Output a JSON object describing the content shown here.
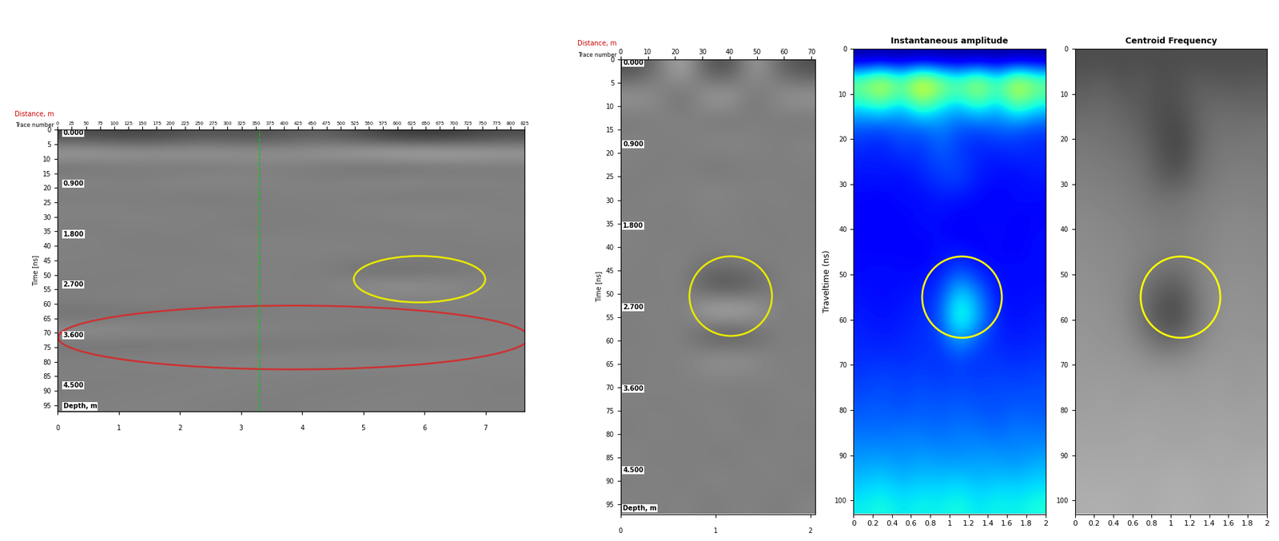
{
  "chart_data": [
    {
      "type": "radargram",
      "x_label": {
        "text": "Distance, m",
        "color": "#cc0000"
      },
      "x2_label": "Trace number",
      "y_label": "Time [ns]",
      "depth_title": "Depth, m",
      "xlim": [
        0,
        7.64
      ],
      "xticks": [
        0,
        1,
        2,
        3,
        4,
        5,
        6,
        7
      ],
      "x2lim": [
        0,
        825
      ],
      "x2ticks": [
        0,
        25,
        50,
        75,
        100,
        125,
        150,
        175,
        200,
        225,
        250,
        275,
        300,
        325,
        350,
        375,
        400,
        425,
        450,
        475,
        500,
        525,
        550,
        575,
        600,
        625,
        650,
        675,
        700,
        725,
        750,
        775,
        800,
        825
      ],
      "ylim": [
        0,
        97
      ],
      "yticks": [
        0,
        5,
        10,
        15,
        20,
        25,
        30,
        35,
        40,
        45,
        50,
        55,
        60,
        65,
        70,
        75,
        80,
        85,
        90,
        95
      ],
      "depth_labels": [
        {
          "value": 0,
          "label": "0.000"
        },
        {
          "value": 17.4,
          "label": "0.900"
        },
        {
          "value": 34.8,
          "label": "1.800"
        },
        {
          "value": 52.2,
          "label": "2.700"
        },
        {
          "value": 69.6,
          "label": "3.600"
        },
        {
          "value": 87,
          "label": "4.500"
        }
      ],
      "marker_line": {
        "x": 3.3,
        "color": "#00cc00"
      },
      "highlights": [
        {
          "x": 5.92,
          "y": 51.5,
          "width": 2.15,
          "height": 16,
          "color": "#e8e800"
        },
        {
          "x": 3.86,
          "y": 71.6,
          "width": 7.7,
          "height": 22,
          "color": "#cc3333"
        }
      ],
      "cells": [
        [
          0.3,
          0.25,
          0.35,
          0.3,
          0.4,
          0.25,
          0.2,
          0.3
        ],
        [
          0.65,
          0.6,
          0.62,
          0.58,
          0.6,
          0.68,
          0.7,
          0.64
        ],
        [
          0.44,
          0.48,
          0.46,
          0.5,
          0.47,
          0.42,
          0.45,
          0.47
        ],
        [
          0.53,
          0.5,
          0.55,
          0.52,
          0.5,
          0.54,
          0.53,
          0.51
        ],
        [
          0.48,
          0.5,
          0.47,
          0.49,
          0.51,
          0.48,
          0.47,
          0.5
        ],
        [
          0.52,
          0.5,
          0.51,
          0.5,
          0.49,
          0.52,
          0.53,
          0.5
        ],
        [
          0.49,
          0.51,
          0.5,
          0.48,
          0.5,
          0.49,
          0.5,
          0.51
        ],
        [
          0.51,
          0.48,
          0.5,
          0.52,
          0.5,
          0.51,
          0.49,
          0.5
        ],
        [
          0.5,
          0.5,
          0.49,
          0.5,
          0.51,
          0.5,
          0.5,
          0.49
        ],
        [
          0.5,
          0.49,
          0.51,
          0.5,
          0.5,
          0.42,
          0.44,
          0.5
        ],
        [
          0.49,
          0.5,
          0.5,
          0.51,
          0.49,
          0.58,
          0.56,
          0.5
        ],
        [
          0.5,
          0.51,
          0.49,
          0.5,
          0.5,
          0.49,
          0.51,
          0.5
        ],
        [
          0.44,
          0.46,
          0.47,
          0.49,
          0.5,
          0.5,
          0.49,
          0.5
        ],
        [
          0.57,
          0.55,
          0.54,
          0.52,
          0.5,
          0.49,
          0.51,
          0.5
        ],
        [
          0.46,
          0.45,
          0.47,
          0.46,
          0.48,
          0.47,
          0.49,
          0.5
        ],
        [
          0.5,
          0.52,
          0.51,
          0.53,
          0.52,
          0.54,
          0.52,
          0.51
        ],
        [
          0.5,
          0.49,
          0.5,
          0.51,
          0.5,
          0.49,
          0.5,
          0.5
        ],
        [
          0.49,
          0.5,
          0.51,
          0.5,
          0.49,
          0.5,
          0.51,
          0.49
        ],
        [
          0.5,
          0.51,
          0.5,
          0.49,
          0.5,
          0.51,
          0.5,
          0.5
        ]
      ]
    },
    {
      "type": "radargram",
      "x_label": {
        "text": "Distance, m",
        "color": "#cc0000"
      },
      "x2_label": "Trace number",
      "y_label": "Time [ns]",
      "depth_title": "Depth, m",
      "xlim": [
        0,
        2.05
      ],
      "xticks": [
        0,
        1,
        2
      ],
      "x2lim": [
        0,
        71.4
      ],
      "x2ticks": [
        0,
        10,
        20,
        30,
        40,
        50,
        60,
        70
      ],
      "ylim": [
        0,
        97
      ],
      "yticks": [
        0,
        5,
        10,
        15,
        20,
        25,
        30,
        35,
        40,
        45,
        50,
        55,
        60,
        65,
        70,
        75,
        80,
        85,
        90,
        95
      ],
      "depth_labels": [
        {
          "value": 0,
          "label": "0.000"
        },
        {
          "value": 17.4,
          "label": "0.900"
        },
        {
          "value": 34.8,
          "label": "1.800"
        },
        {
          "value": 52.2,
          "label": "2.700"
        },
        {
          "value": 69.6,
          "label": "3.600"
        },
        {
          "value": 87,
          "label": "4.500"
        }
      ],
      "highlights": [
        {
          "x": 1.16,
          "y": 50.5,
          "width": 0.87,
          "height": 17,
          "color": "#e8e800"
        }
      ],
      "cells": [
        [
          0.3,
          0.45,
          0.7,
          0.35,
          0.3,
          0.65,
          0.4,
          0.3
        ],
        [
          0.62,
          0.55,
          0.4,
          0.62,
          0.65,
          0.42,
          0.58,
          0.62
        ],
        [
          0.46,
          0.5,
          0.52,
          0.47,
          0.45,
          0.5,
          0.48,
          0.46
        ],
        [
          0.52,
          0.5,
          0.49,
          0.53,
          0.54,
          0.51,
          0.5,
          0.52
        ],
        [
          0.5,
          0.48,
          0.51,
          0.46,
          0.47,
          0.5,
          0.49,
          0.5
        ],
        [
          0.49,
          0.51,
          0.5,
          0.53,
          0.52,
          0.5,
          0.51,
          0.49
        ],
        [
          0.5,
          0.5,
          0.49,
          0.51,
          0.5,
          0.49,
          0.5,
          0.5
        ],
        [
          0.51,
          0.49,
          0.5,
          0.5,
          0.51,
          0.5,
          0.49,
          0.5
        ],
        [
          0.5,
          0.5,
          0.51,
          0.47,
          0.48,
          0.5,
          0.5,
          0.5
        ],
        [
          0.5,
          0.49,
          0.52,
          0.32,
          0.28,
          0.36,
          0.5,
          0.51
        ],
        [
          0.5,
          0.51,
          0.48,
          0.7,
          0.74,
          0.66,
          0.49,
          0.5
        ],
        [
          0.49,
          0.5,
          0.51,
          0.34,
          0.3,
          0.38,
          0.5,
          0.5
        ],
        [
          0.5,
          0.5,
          0.5,
          0.58,
          0.6,
          0.56,
          0.5,
          0.5
        ],
        [
          0.49,
          0.51,
          0.5,
          0.5,
          0.49,
          0.5,
          0.51,
          0.5
        ],
        [
          0.51,
          0.49,
          0.5,
          0.51,
          0.5,
          0.49,
          0.5,
          0.51
        ],
        [
          0.48,
          0.52,
          0.49,
          0.5,
          0.52,
          0.48,
          0.51,
          0.49
        ],
        [
          0.52,
          0.48,
          0.51,
          0.49,
          0.48,
          0.52,
          0.49,
          0.51
        ],
        [
          0.49,
          0.52,
          0.48,
          0.52,
          0.51,
          0.49,
          0.52,
          0.48
        ],
        [
          0.51,
          0.49,
          0.52,
          0.48,
          0.5,
          0.51,
          0.48,
          0.52
        ]
      ]
    },
    {
      "type": "heatmap",
      "title": "Instantaneous amplitude",
      "y_label": "Traveltime (ns)",
      "xlim": [
        0,
        2
      ],
      "xticks": [
        0,
        0.2,
        0.4,
        0.6,
        0.8,
        1,
        1.2,
        1.4,
        1.6,
        1.8,
        2
      ],
      "ylim": [
        0,
        103
      ],
      "yticks": [
        0,
        10,
        20,
        30,
        40,
        50,
        60,
        70,
        80,
        90,
        100
      ],
      "highlights": [
        {
          "x": 1.13,
          "y": 55,
          "width": 0.83,
          "height": 18,
          "color": "#ffff00"
        }
      ],
      "cells": [
        [
          0.02,
          0.02,
          0.02,
          0.02,
          0.02,
          0.02,
          0.02,
          0.02,
          0.02,
          0.02
        ],
        [
          0.55,
          0.7,
          0.5,
          0.75,
          0.6,
          0.5,
          0.65,
          0.45,
          0.7,
          0.55
        ],
        [
          0.35,
          0.4,
          0.3,
          0.45,
          0.35,
          0.3,
          0.4,
          0.3,
          0.45,
          0.35
        ],
        [
          0.2,
          0.18,
          0.22,
          0.2,
          0.25,
          0.2,
          0.18,
          0.22,
          0.2,
          0.18
        ],
        [
          0.16,
          0.15,
          0.18,
          0.17,
          0.22,
          0.18,
          0.16,
          0.15,
          0.17,
          0.16
        ],
        [
          0.14,
          0.15,
          0.13,
          0.16,
          0.18,
          0.2,
          0.15,
          0.14,
          0.13,
          0.15
        ],
        [
          0.13,
          0.12,
          0.14,
          0.13,
          0.15,
          0.14,
          0.13,
          0.12,
          0.14,
          0.13
        ],
        [
          0.12,
          0.13,
          0.12,
          0.14,
          0.13,
          0.12,
          0.13,
          0.14,
          0.12,
          0.13
        ],
        [
          0.13,
          0.12,
          0.13,
          0.12,
          0.14,
          0.13,
          0.12,
          0.13,
          0.12,
          0.14
        ],
        [
          0.13,
          0.14,
          0.13,
          0.13,
          0.14,
          0.2,
          0.15,
          0.13,
          0.14,
          0.13
        ],
        [
          0.14,
          0.13,
          0.14,
          0.15,
          0.18,
          0.35,
          0.25,
          0.14,
          0.13,
          0.14
        ],
        [
          0.15,
          0.14,
          0.15,
          0.16,
          0.2,
          0.45,
          0.3,
          0.15,
          0.14,
          0.15
        ],
        [
          0.16,
          0.15,
          0.16,
          0.17,
          0.18,
          0.3,
          0.2,
          0.16,
          0.15,
          0.16
        ],
        [
          0.17,
          0.18,
          0.17,
          0.18,
          0.17,
          0.18,
          0.17,
          0.18,
          0.17,
          0.18
        ],
        [
          0.19,
          0.2,
          0.19,
          0.2,
          0.19,
          0.2,
          0.19,
          0.2,
          0.19,
          0.2
        ],
        [
          0.21,
          0.22,
          0.2,
          0.22,
          0.21,
          0.22,
          0.21,
          0.2,
          0.22,
          0.21
        ],
        [
          0.24,
          0.23,
          0.25,
          0.24,
          0.23,
          0.25,
          0.24,
          0.23,
          0.25,
          0.24
        ],
        [
          0.27,
          0.28,
          0.26,
          0.28,
          0.27,
          0.26,
          0.28,
          0.27,
          0.26,
          0.28
        ],
        [
          0.31,
          0.33,
          0.3,
          0.32,
          0.31,
          0.33,
          0.3,
          0.32,
          0.31,
          0.33
        ],
        [
          0.36,
          0.38,
          0.35,
          0.37,
          0.36,
          0.38,
          0.35,
          0.37,
          0.36,
          0.38
        ]
      ]
    },
    {
      "type": "heatmap",
      "title": "Centroid Frequency",
      "xlim": [
        0,
        2
      ],
      "xticks": [
        0,
        0.2,
        0.4,
        0.6,
        0.8,
        1,
        1.2,
        1.4,
        1.6,
        1.8,
        2
      ],
      "ylim": [
        0,
        103
      ],
      "yticks": [
        0,
        10,
        20,
        30,
        40,
        50,
        60,
        70,
        80,
        90,
        100
      ],
      "highlights": [
        {
          "x": 1.1,
          "y": 55,
          "width": 0.83,
          "height": 18,
          "color": "#ffff00"
        }
      ],
      "cells": [
        [
          0.3,
          0.3,
          0.3,
          0.3,
          0.3,
          0.3,
          0.3,
          0.3,
          0.3,
          0.3
        ],
        [
          0.35,
          0.38,
          0.32,
          0.36,
          0.3,
          0.33,
          0.37,
          0.35,
          0.34,
          0.36
        ],
        [
          0.4,
          0.42,
          0.38,
          0.35,
          0.3,
          0.32,
          0.4,
          0.42,
          0.41,
          0.4
        ],
        [
          0.45,
          0.44,
          0.42,
          0.38,
          0.3,
          0.28,
          0.4,
          0.45,
          0.44,
          0.46
        ],
        [
          0.48,
          0.47,
          0.45,
          0.42,
          0.32,
          0.27,
          0.42,
          0.47,
          0.48,
          0.47
        ],
        [
          0.5,
          0.49,
          0.48,
          0.45,
          0.36,
          0.34,
          0.45,
          0.49,
          0.5,
          0.5
        ],
        [
          0.52,
          0.51,
          0.5,
          0.48,
          0.45,
          0.46,
          0.49,
          0.51,
          0.52,
          0.51
        ],
        [
          0.54,
          0.53,
          0.52,
          0.5,
          0.49,
          0.48,
          0.51,
          0.53,
          0.54,
          0.53
        ],
        [
          0.55,
          0.54,
          0.53,
          0.52,
          0.5,
          0.5,
          0.52,
          0.54,
          0.55,
          0.54
        ],
        [
          0.56,
          0.55,
          0.54,
          0.5,
          0.45,
          0.44,
          0.52,
          0.55,
          0.56,
          0.55
        ],
        [
          0.57,
          0.56,
          0.54,
          0.45,
          0.35,
          0.34,
          0.5,
          0.56,
          0.57,
          0.56
        ],
        [
          0.58,
          0.57,
          0.55,
          0.44,
          0.3,
          0.3,
          0.48,
          0.57,
          0.58,
          0.57
        ],
        [
          0.59,
          0.58,
          0.57,
          0.5,
          0.4,
          0.42,
          0.53,
          0.58,
          0.59,
          0.58
        ],
        [
          0.6,
          0.59,
          0.6,
          0.58,
          0.56,
          0.57,
          0.59,
          0.6,
          0.59,
          0.6
        ],
        [
          0.61,
          0.62,
          0.6,
          0.61,
          0.62,
          0.6,
          0.61,
          0.62,
          0.6,
          0.61
        ],
        [
          0.62,
          0.63,
          0.62,
          0.63,
          0.62,
          0.63,
          0.62,
          0.63,
          0.62,
          0.63
        ],
        [
          0.64,
          0.63,
          0.64,
          0.65,
          0.64,
          0.63,
          0.64,
          0.65,
          0.64,
          0.63
        ],
        [
          0.65,
          0.66,
          0.65,
          0.66,
          0.65,
          0.66,
          0.65,
          0.66,
          0.65,
          0.66
        ],
        [
          0.67,
          0.66,
          0.67,
          0.66,
          0.67,
          0.68,
          0.67,
          0.66,
          0.67,
          0.68
        ],
        [
          0.68,
          0.69,
          0.68,
          0.67,
          0.68,
          0.69,
          0.68,
          0.67,
          0.68,
          0.69
        ]
      ]
    }
  ]
}
